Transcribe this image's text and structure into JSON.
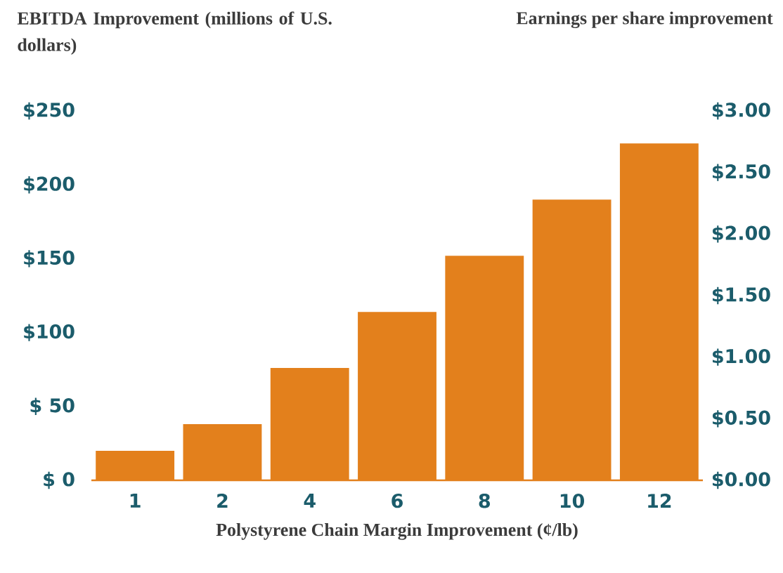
{
  "chart_data": {
    "type": "bar",
    "ylabel": "EBITDA Improvement (millions of U.S. dollars)",
    "y2label": "Earnings per share improvement",
    "xlabel": "Polystyrene Chain Margin Improvement (¢/lb)",
    "categories": [
      "1",
      "2",
      "4",
      "6",
      "8",
      "10",
      "12"
    ],
    "values": [
      20,
      38,
      76,
      114,
      152,
      190,
      228
    ],
    "color": "#e3801c",
    "ylim": [
      0,
      250
    ],
    "yticks": [
      {
        "value": 0,
        "label": "$  0"
      },
      {
        "value": 50,
        "label": "$ 50"
      },
      {
        "value": 100,
        "label": "$100"
      },
      {
        "value": 150,
        "label": "$150"
      },
      {
        "value": 200,
        "label": "$200"
      },
      {
        "value": 250,
        "label": "$250"
      }
    ],
    "y2lim": [
      0,
      3
    ],
    "y2ticks": [
      {
        "value": 0,
        "label": "$0.00"
      },
      {
        "value": 0.5,
        "label": "$0.50"
      },
      {
        "value": 1,
        "label": "$1.00"
      },
      {
        "value": 1.5,
        "label": "$1.50"
      },
      {
        "value": 2,
        "label": "$2.00"
      },
      {
        "value": 2.5,
        "label": "$2.50"
      },
      {
        "value": 3,
        "label": "$3.00"
      }
    ]
  }
}
